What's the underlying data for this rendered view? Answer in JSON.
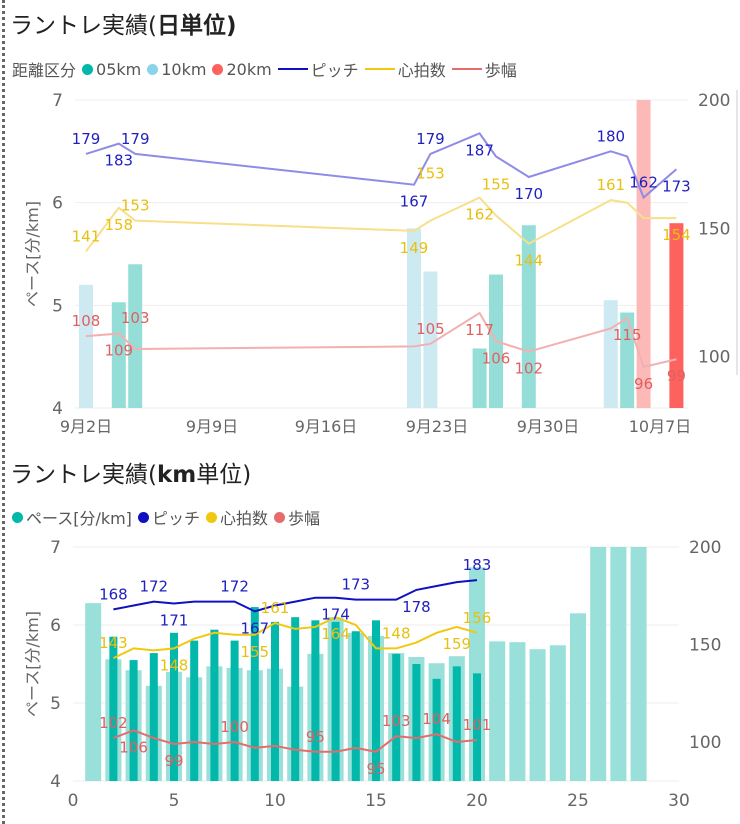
{
  "colors": {
    "c05": "#01B8AA",
    "c10": "#8AD4EB",
    "c20": "#FD625E",
    "pitch": "#1010C0",
    "hr": "#F2C80F",
    "stride": "#E66C6C"
  },
  "chart_data": [
    {
      "type": "bar+line",
      "title": "ラントレ実績(日単位)",
      "title_plain": "ラントレ実績(",
      "title_bold": "日単位",
      "legend_title": "距離区分",
      "legend": [
        "05km",
        "10km",
        "20km",
        "ピッチ",
        "心拍数",
        "歩幅"
      ],
      "ylabel": "ペース[分/km]",
      "ylim": [
        4,
        7
      ],
      "y2lim": [
        80,
        200
      ],
      "yticks": [
        "4",
        "5",
        "6",
        "7"
      ],
      "y2ticks": [
        "100",
        "150",
        "200"
      ],
      "xticks": [
        "9月2日",
        "9月9日",
        "9月16日",
        "9月23日",
        "9月30日",
        "10月7日"
      ],
      "bars": [
        {
          "date": "2024-09-02",
          "cat": "10km",
          "pace": 5.2
        },
        {
          "date": "2024-09-04",
          "cat": "05km",
          "pace": 5.03
        },
        {
          "date": "2024-09-05",
          "cat": "05km",
          "pace": 5.4
        },
        {
          "date": "2024-09-22",
          "cat": "10km",
          "pace": 5.75
        },
        {
          "date": "2024-09-23",
          "cat": "10km",
          "pace": 5.33
        },
        {
          "date": "2024-09-26",
          "cat": "05km",
          "pace": 4.58
        },
        {
          "date": "2024-09-27",
          "cat": "05km",
          "pace": 5.3
        },
        {
          "date": "2024-09-29",
          "cat": "05km",
          "pace": 5.78
        },
        {
          "date": "2024-10-04",
          "cat": "10km",
          "pace": 5.05
        },
        {
          "date": "2024-10-05",
          "cat": "05km",
          "pace": 4.93
        },
        {
          "date": "2024-10-06",
          "cat": "20km",
          "pace": 7.0
        },
        {
          "date": "2024-10-08",
          "cat": "20km",
          "pace": 5.8,
          "highlight": true
        }
      ],
      "line_dates": [
        "2024-09-02",
        "2024-09-04",
        "2024-09-05",
        "2024-09-22",
        "2024-09-23",
        "2024-09-26",
        "2024-09-27",
        "2024-09-29",
        "2024-10-04",
        "2024-10-05",
        "2024-10-06",
        "2024-10-08"
      ],
      "series": [
        {
          "name": "ピッチ",
          "values": [
            179,
            183,
            179,
            167,
            179,
            187,
            178,
            170,
            180,
            178,
            162,
            173
          ],
          "labeled": [
            1,
            1,
            1,
            1,
            1,
            1,
            0,
            1,
            1,
            0,
            1,
            1
          ]
        },
        {
          "name": "心拍数",
          "values": [
            141,
            158,
            153,
            149,
            153,
            162,
            155,
            144,
            161,
            160,
            154,
            154
          ],
          "labeled": [
            1,
            1,
            1,
            1,
            1,
            1,
            1,
            1,
            1,
            0,
            0,
            1
          ]
        },
        {
          "name": "歩幅",
          "values": [
            108,
            109,
            103,
            104,
            105,
            117,
            106,
            102,
            111,
            115,
            96,
            99
          ],
          "labeled": [
            1,
            1,
            1,
            0,
            1,
            1,
            1,
            1,
            0,
            1,
            1,
            1
          ]
        }
      ]
    },
    {
      "type": "bar+line",
      "title": "ラントレ実績(km単位)",
      "title_plain": "ラントレ実績(",
      "title_bold": "km",
      "legend": [
        "ペース[分/km]",
        "ピッチ",
        "心拍数",
        "歩幅"
      ],
      "ylabel": "ペース[分/km]",
      "ylim": [
        4,
        7
      ],
      "y2lim": [
        80,
        200
      ],
      "xlim": [
        0,
        30
      ],
      "xticks": [
        "0",
        "5",
        "10",
        "15",
        "20",
        "25",
        "30"
      ],
      "yticks": [
        "4",
        "5",
        "6",
        "7"
      ],
      "y2ticks": [
        "100",
        "150",
        "200"
      ],
      "bars_faded": [
        6.28,
        5.56,
        5.42,
        5.22,
        5.4,
        5.33,
        5.47,
        5.45,
        5.42,
        5.44,
        5.21,
        5.63,
        6.1,
        5.9,
        5.86,
        5.64,
        5.59,
        5.51,
        5.6,
        6.74,
        5.79,
        5.78,
        5.69,
        5.74,
        6.15,
        7,
        7,
        7
      ],
      "bars_selected": [
        null,
        5.85,
        5.55,
        5.64,
        5.9,
        5.8,
        5.94,
        5.8,
        6.23,
        6.04,
        6.1,
        6.06,
        6.04,
        5.92,
        6.06,
        5.63,
        5.5,
        5.31,
        5.47,
        5.38
      ],
      "line_x": [
        2,
        3,
        4,
        5,
        6,
        7,
        8,
        9,
        10,
        11,
        12,
        13,
        14,
        15,
        16,
        17,
        18,
        19,
        20
      ],
      "series": [
        {
          "name": "ピッチ",
          "values": [
            168,
            170,
            172,
            171,
            172,
            172,
            172,
            167,
            170,
            172,
            174,
            174,
            173,
            173,
            173,
            178,
            180,
            182,
            183
          ],
          "labeled": [
            1,
            0,
            1,
            1,
            0,
            0,
            1,
            1,
            0,
            0,
            0,
            1,
            1,
            0,
            0,
            1,
            0,
            0,
            1
          ]
        },
        {
          "name": "心拍数",
          "values": [
            143,
            148,
            147,
            148,
            153,
            156,
            155,
            155,
            161,
            158,
            159,
            164,
            160,
            148,
            148,
            151,
            156,
            159,
            156
          ],
          "labeled": [
            1,
            0,
            0,
            1,
            0,
            0,
            0,
            1,
            1,
            0,
            0,
            1,
            0,
            0,
            1,
            0,
            0,
            1,
            1
          ]
        },
        {
          "name": "歩幅",
          "values": [
            102,
            106,
            102,
            99,
            100,
            99,
            100,
            97,
            98,
            96,
            95,
            95,
            97,
            95,
            103,
            102,
            104,
            100,
            101
          ],
          "labeled": [
            1,
            1,
            0,
            1,
            0,
            0,
            1,
            0,
            0,
            0,
            1,
            0,
            0,
            1,
            1,
            0,
            1,
            0,
            1
          ]
        }
      ]
    }
  ]
}
